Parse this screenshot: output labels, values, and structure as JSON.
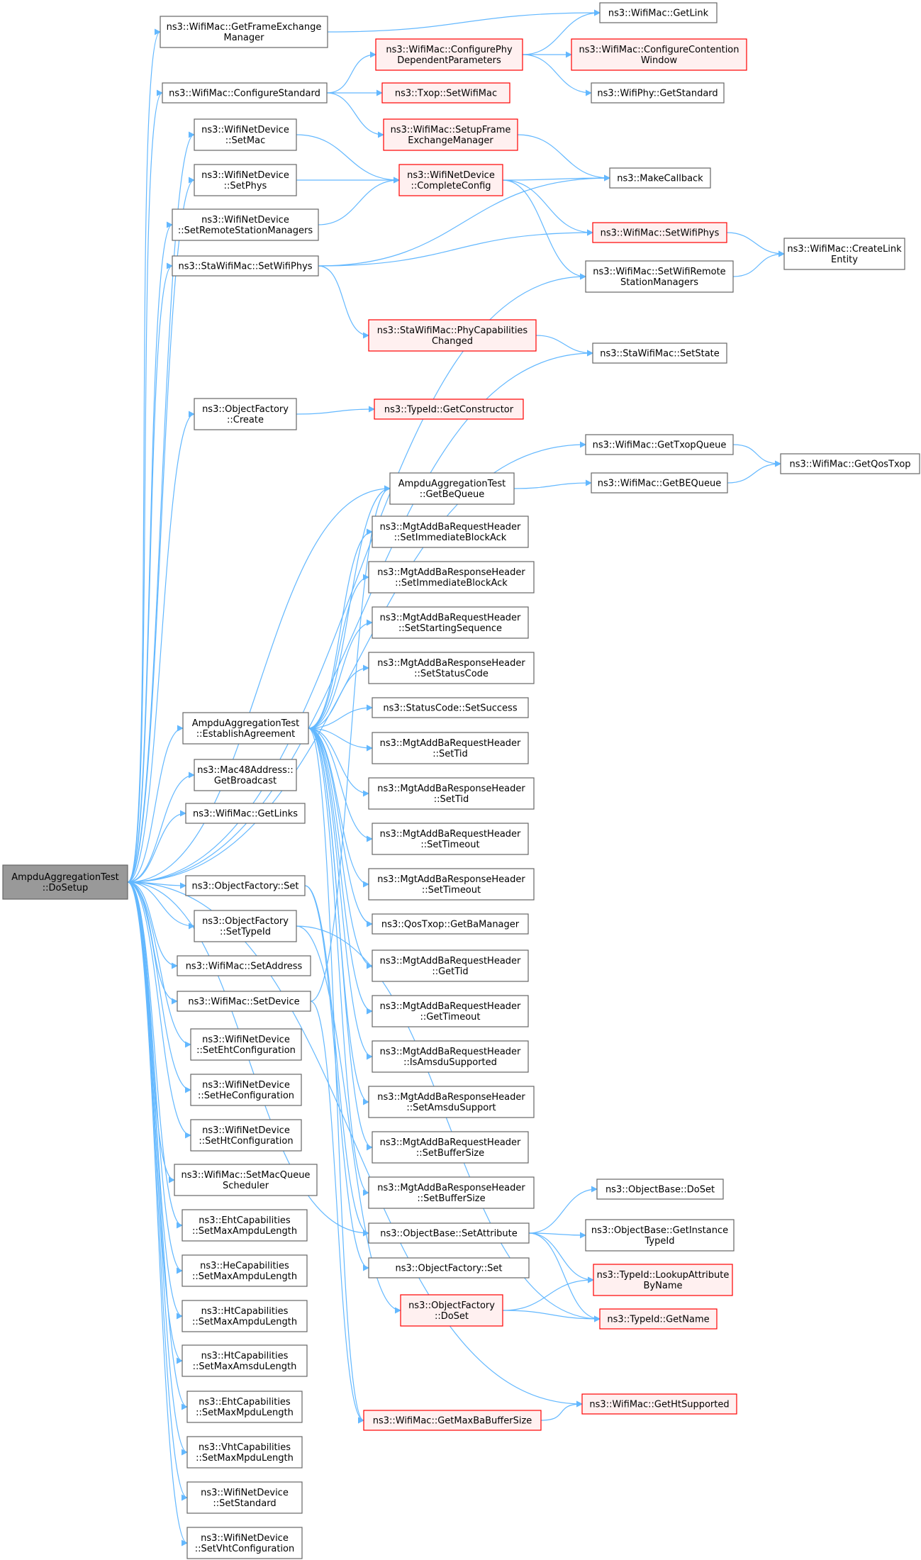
{
  "colors": {
    "edge": "#63b8ff",
    "node_border": "#666666",
    "node_fill": "#ffffff",
    "root_fill": "#999999",
    "root_border": "#666666",
    "truncated_border": "#ff0000",
    "truncated_fill": "#fff0f0"
  },
  "nodes": [
    {
      "id": "root",
      "lines": [
        "AmpduAggregationTest",
        "::DoSetup"
      ],
      "style": "root"
    },
    {
      "id": "getfem",
      "lines": [
        "ns3::WifiMac::GetFrameExchange",
        "Manager"
      ],
      "style": "normal"
    },
    {
      "id": "getlink",
      "lines": [
        "ns3::WifiMac::GetLink"
      ],
      "style": "normal"
    },
    {
      "id": "confphy",
      "lines": [
        "ns3::WifiMac::ConfigurePhy",
        "DependentParameters"
      ],
      "style": "truncated"
    },
    {
      "id": "confcont",
      "lines": [
        "ns3::WifiMac::ConfigureContention",
        "Window"
      ],
      "style": "truncated"
    },
    {
      "id": "confstd",
      "lines": [
        "ns3::WifiMac::ConfigureStandard"
      ],
      "style": "normal"
    },
    {
      "id": "txopset",
      "lines": [
        "ns3::Txop::SetWifiMac"
      ],
      "style": "truncated"
    },
    {
      "id": "phygetstd",
      "lines": [
        "ns3::WifiPhy::GetStandard"
      ],
      "style": "normal"
    },
    {
      "id": "setupfem",
      "lines": [
        "ns3::WifiMac::SetupFrame",
        "ExchangeManager"
      ],
      "style": "truncated"
    },
    {
      "id": "wndsetmac",
      "lines": [
        "ns3::WifiNetDevice",
        "::SetMac"
      ],
      "style": "normal"
    },
    {
      "id": "wndsetphys",
      "lines": [
        "ns3::WifiNetDevice",
        "::SetPhys"
      ],
      "style": "normal"
    },
    {
      "id": "compcfg",
      "lines": [
        "ns3::WifiNetDevice",
        "::CompleteConfig"
      ],
      "style": "truncated"
    },
    {
      "id": "makecb",
      "lines": [
        "ns3::MakeCallback"
      ],
      "style": "normal"
    },
    {
      "id": "wndsetrsm",
      "lines": [
        "ns3::WifiNetDevice",
        "::SetRemoteStationManagers"
      ],
      "style": "normal"
    },
    {
      "id": "macsetphys",
      "lines": [
        "ns3::WifiMac::SetWifiPhys"
      ],
      "style": "truncated"
    },
    {
      "id": "createlink",
      "lines": [
        "ns3::WifiMac::CreateLink",
        "Entity"
      ],
      "style": "normal"
    },
    {
      "id": "stasetphys",
      "lines": [
        "ns3::StaWifiMac::SetWifiPhys"
      ],
      "style": "normal"
    },
    {
      "id": "macsetrsm",
      "lines": [
        "ns3::WifiMac::SetWifiRemote",
        "StationManagers"
      ],
      "style": "normal"
    },
    {
      "id": "phycapch",
      "lines": [
        "ns3::StaWifiMac::PhyCapabilities",
        "Changed"
      ],
      "style": "truncated"
    },
    {
      "id": "stasetstate",
      "lines": [
        "ns3::StaWifiMac::SetState"
      ],
      "style": "normal"
    },
    {
      "id": "ofcreate",
      "lines": [
        "ns3::ObjectFactory",
        "::Create"
      ],
      "style": "normal"
    },
    {
      "id": "getctor",
      "lines": [
        "ns3::TypeId::GetConstructor"
      ],
      "style": "truncated"
    },
    {
      "id": "gettxopq",
      "lines": [
        "ns3::WifiMac::GetTxopQueue"
      ],
      "style": "normal"
    },
    {
      "id": "getqostxop",
      "lines": [
        "ns3::WifiMac::GetQosTxop"
      ],
      "style": "normal"
    },
    {
      "id": "aatgetbeq",
      "lines": [
        "AmpduAggregationTest",
        "::GetBeQueue"
      ],
      "style": "normal"
    },
    {
      "id": "macgetbeq",
      "lines": [
        "ns3::WifiMac::GetBEQueue"
      ],
      "style": "normal"
    },
    {
      "id": "reqsetiba",
      "lines": [
        "ns3::MgtAddBaRequestHeader",
        "::SetImmediateBlockAck"
      ],
      "style": "normal"
    },
    {
      "id": "respsetiba",
      "lines": [
        "ns3::MgtAddBaResponseHeader",
        "::SetImmediateBlockAck"
      ],
      "style": "normal"
    },
    {
      "id": "reqsetss",
      "lines": [
        "ns3::MgtAddBaRequestHeader",
        "::SetStartingSequence"
      ],
      "style": "normal"
    },
    {
      "id": "respsetsc",
      "lines": [
        "ns3::MgtAddBaResponseHeader",
        "::SetStatusCode"
      ],
      "style": "normal"
    },
    {
      "id": "scsetsucc",
      "lines": [
        "ns3::StatusCode::SetSuccess"
      ],
      "style": "normal"
    },
    {
      "id": "aatestab",
      "lines": [
        "AmpduAggregationTest",
        "::EstablishAgreement"
      ],
      "style": "normal"
    },
    {
      "id": "reqsettid",
      "lines": [
        "ns3::MgtAddBaRequestHeader",
        "::SetTid"
      ],
      "style": "normal"
    },
    {
      "id": "mac48",
      "lines": [
        "ns3::Mac48Address::",
        "GetBroadcast"
      ],
      "style": "normal"
    },
    {
      "id": "respsettid",
      "lines": [
        "ns3::MgtAddBaResponseHeader",
        "::SetTid"
      ],
      "style": "normal"
    },
    {
      "id": "macgetlinks",
      "lines": [
        "ns3::WifiMac::GetLinks"
      ],
      "style": "normal"
    },
    {
      "id": "reqsetto",
      "lines": [
        "ns3::MgtAddBaRequestHeader",
        "::SetTimeout"
      ],
      "style": "normal"
    },
    {
      "id": "respsetto",
      "lines": [
        "ns3::MgtAddBaResponseHeader",
        "::SetTimeout"
      ],
      "style": "normal"
    },
    {
      "id": "ofset",
      "lines": [
        "ns3::ObjectFactory::Set"
      ],
      "style": "normal"
    },
    {
      "id": "qosgetbam",
      "lines": [
        "ns3::QosTxop::GetBaManager"
      ],
      "style": "normal"
    },
    {
      "id": "ofsettid",
      "lines": [
        "ns3::ObjectFactory",
        "::SetTypeId"
      ],
      "style": "normal"
    },
    {
      "id": "reqgettid",
      "lines": [
        "ns3::MgtAddBaRequestHeader",
        "::GetTid"
      ],
      "style": "normal"
    },
    {
      "id": "macsetaddr",
      "lines": [
        "ns3::WifiMac::SetAddress"
      ],
      "style": "normal"
    },
    {
      "id": "reqgetto",
      "lines": [
        "ns3::MgtAddBaRequestHeader",
        "::GetTimeout"
      ],
      "style": "normal"
    },
    {
      "id": "macsetdev",
      "lines": [
        "ns3::WifiMac::SetDevice"
      ],
      "style": "normal"
    },
    {
      "id": "wndseteht",
      "lines": [
        "ns3::WifiNetDevice",
        "::SetEhtConfiguration"
      ],
      "style": "normal"
    },
    {
      "id": "reqisamsdu",
      "lines": [
        "ns3::MgtAddBaRequestHeader",
        "::IsAmsduSupported"
      ],
      "style": "normal"
    },
    {
      "id": "wndsethe",
      "lines": [
        "ns3::WifiNetDevice",
        "::SetHeConfiguration"
      ],
      "style": "normal"
    },
    {
      "id": "respsetamsdu",
      "lines": [
        "ns3::MgtAddBaResponseHeader",
        "::SetAmsduSupport"
      ],
      "style": "normal"
    },
    {
      "id": "wndsetht",
      "lines": [
        "ns3::WifiNetDevice",
        "::SetHtConfiguration"
      ],
      "style": "normal"
    },
    {
      "id": "reqsetbuf",
      "lines": [
        "ns3::MgtAddBaRequestHeader",
        "::SetBufferSize"
      ],
      "style": "normal"
    },
    {
      "id": "macsetmqs",
      "lines": [
        "ns3::WifiMac::SetMacQueue",
        "Scheduler"
      ],
      "style": "normal"
    },
    {
      "id": "respsetbuf",
      "lines": [
        "ns3::MgtAddBaResponseHeader",
        "::SetBufferSize"
      ],
      "style": "normal"
    },
    {
      "id": "obdoset",
      "lines": [
        "ns3::ObjectBase::DoSet"
      ],
      "style": "normal"
    },
    {
      "id": "ehtmaxampdu",
      "lines": [
        "ns3::EhtCapabilities",
        "::SetMaxAmpduLength"
      ],
      "style": "normal"
    },
    {
      "id": "obsetattr",
      "lines": [
        "ns3::ObjectBase::SetAttribute"
      ],
      "style": "normal"
    },
    {
      "id": "obgetinst",
      "lines": [
        "ns3::ObjectBase::GetInstance",
        "TypeId"
      ],
      "style": "normal"
    },
    {
      "id": "hemaxampdu",
      "lines": [
        "ns3::HeCapabilities",
        "::SetMaxAmpduLength"
      ],
      "style": "normal"
    },
    {
      "id": "ofset2",
      "lines": [
        "ns3::ObjectFactory::Set"
      ],
      "style": "normal"
    },
    {
      "id": "lookupattr",
      "lines": [
        "ns3::TypeId::LookupAttribute",
        "ByName"
      ],
      "style": "truncated"
    },
    {
      "id": "htmaxampdu",
      "lines": [
        "ns3::HtCapabilities",
        "::SetMaxAmpduLength"
      ],
      "style": "normal"
    },
    {
      "id": "ofdoset",
      "lines": [
        "ns3::ObjectFactory",
        "::DoSet"
      ],
      "style": "truncated"
    },
    {
      "id": "tidgetname",
      "lines": [
        "ns3::TypeId::GetName"
      ],
      "style": "truncated"
    },
    {
      "id": "htmaxamsdu",
      "lines": [
        "ns3::HtCapabilities",
        "::SetMaxAmsduLength"
      ],
      "style": "normal"
    },
    {
      "id": "ehtmaxmpdu",
      "lines": [
        "ns3::EhtCapabilities",
        "::SetMaxMpduLength"
      ],
      "style": "normal"
    },
    {
      "id": "macgetht",
      "lines": [
        "ns3::WifiMac::GetHtSupported"
      ],
      "style": "truncated"
    },
    {
      "id": "macgetmaxba",
      "lines": [
        "ns3::WifiMac::GetMaxBaBufferSize"
      ],
      "style": "truncated"
    },
    {
      "id": "vhtmaxmpdu",
      "lines": [
        "ns3::VhtCapabilities",
        "::SetMaxMpduLength"
      ],
      "style": "normal"
    },
    {
      "id": "wndsetstd",
      "lines": [
        "ns3::WifiNetDevice",
        "::SetStandard"
      ],
      "style": "normal"
    },
    {
      "id": "wndsetvht",
      "lines": [
        "ns3::WifiNetDevice",
        "::SetVhtConfiguration"
      ],
      "style": "normal"
    }
  ],
  "edges": [
    [
      "root",
      "getfem"
    ],
    [
      "root",
      "confstd"
    ],
    [
      "root",
      "wndsetmac"
    ],
    [
      "root",
      "wndsetphys"
    ],
    [
      "root",
      "wndsetrsm"
    ],
    [
      "root",
      "stasetphys"
    ],
    [
      "root",
      "macsetrsm"
    ],
    [
      "root",
      "stasetstate"
    ],
    [
      "root",
      "ofcreate"
    ],
    [
      "root",
      "gettxopq"
    ],
    [
      "root",
      "aatgetbeq"
    ],
    [
      "root",
      "aatestab"
    ],
    [
      "root",
      "mac48"
    ],
    [
      "root",
      "macgetlinks"
    ],
    [
      "root",
      "ofset"
    ],
    [
      "root",
      "ofsettid"
    ],
    [
      "root",
      "macsetaddr"
    ],
    [
      "root",
      "macsetdev"
    ],
    [
      "root",
      "wndseteht"
    ],
    [
      "root",
      "wndsethe"
    ],
    [
      "root",
      "wndsetht"
    ],
    [
      "root",
      "macsetmqs"
    ],
    [
      "root",
      "ehtmaxampdu"
    ],
    [
      "root",
      "hemaxampdu"
    ],
    [
      "root",
      "htmaxampdu"
    ],
    [
      "root",
      "htmaxamsdu"
    ],
    [
      "root",
      "ehtmaxmpdu"
    ],
    [
      "root",
      "vhtmaxmpdu"
    ],
    [
      "root",
      "wndsetstd"
    ],
    [
      "root",
      "wndsetvht"
    ],
    [
      "root",
      "macgetht"
    ],
    [
      "root",
      "obsetattr"
    ],
    [
      "getfem",
      "getlink"
    ],
    [
      "confstd",
      "confphy"
    ],
    [
      "confstd",
      "txopset"
    ],
    [
      "confstd",
      "setupfem"
    ],
    [
      "confphy",
      "getlink"
    ],
    [
      "confphy",
      "confcont"
    ],
    [
      "confphy",
      "phygetstd"
    ],
    [
      "setupfem",
      "makecb"
    ],
    [
      "wndsetmac",
      "compcfg"
    ],
    [
      "wndsetphys",
      "compcfg"
    ],
    [
      "wndsetrsm",
      "compcfg"
    ],
    [
      "compcfg",
      "makecb"
    ],
    [
      "compcfg",
      "macsetphys"
    ],
    [
      "compcfg",
      "macsetrsm"
    ],
    [
      "stasetphys",
      "makecb"
    ],
    [
      "stasetphys",
      "macsetphys"
    ],
    [
      "stasetphys",
      "phycapch"
    ],
    [
      "macsetphys",
      "createlink"
    ],
    [
      "macsetrsm",
      "createlink"
    ],
    [
      "phycapch",
      "stasetstate"
    ],
    [
      "ofcreate",
      "getctor"
    ],
    [
      "gettxopq",
      "getqostxop"
    ],
    [
      "aatgetbeq",
      "macgetbeq"
    ],
    [
      "macgetbeq",
      "getqostxop"
    ],
    [
      "aatestab",
      "aatgetbeq"
    ],
    [
      "aatestab",
      "reqsetiba"
    ],
    [
      "aatestab",
      "respsetiba"
    ],
    [
      "aatestab",
      "reqsetss"
    ],
    [
      "aatestab",
      "respsetsc"
    ],
    [
      "aatestab",
      "scsetsucc"
    ],
    [
      "aatestab",
      "reqsettid"
    ],
    [
      "aatestab",
      "respsettid"
    ],
    [
      "aatestab",
      "reqsetto"
    ],
    [
      "aatestab",
      "respsetto"
    ],
    [
      "aatestab",
      "qosgetbam"
    ],
    [
      "aatestab",
      "reqgettid"
    ],
    [
      "aatestab",
      "reqgetto"
    ],
    [
      "aatestab",
      "reqisamsdu"
    ],
    [
      "aatestab",
      "respsetamsdu"
    ],
    [
      "aatestab",
      "reqsetbuf"
    ],
    [
      "aatestab",
      "respsetbuf"
    ],
    [
      "aatestab",
      "macgetmaxba"
    ],
    [
      "ofset",
      "obsetattr"
    ],
    [
      "ofset",
      "ofset2"
    ],
    [
      "ofsettid",
      "tidgetname"
    ],
    [
      "ofsettid",
      "ofdoset"
    ],
    [
      "macsetdev",
      "aatgetbeq"
    ],
    [
      "macsetdev",
      "macgetmaxba"
    ],
    [
      "obsetattr",
      "obdoset"
    ],
    [
      "obsetattr",
      "obgetinst"
    ],
    [
      "obsetattr",
      "lookupattr"
    ],
    [
      "obsetattr",
      "tidgetname"
    ],
    [
      "ofdoset",
      "lookupattr"
    ],
    [
      "ofdoset",
      "tidgetname"
    ],
    [
      "macgetmaxba",
      "macgetht"
    ]
  ]
}
